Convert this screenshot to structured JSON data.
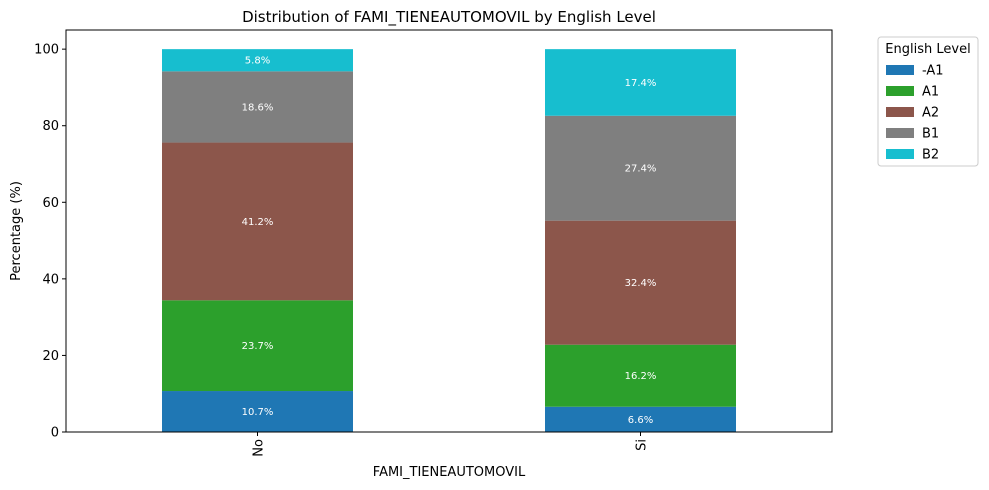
{
  "chart_data": {
    "type": "bar",
    "stacked": true,
    "title": "Distribution of FAMI_TIENEAUTOMOVIL by English Level",
    "xlabel": "FAMI_TIENEAUTOMOVIL",
    "ylabel": "Percentage (%)",
    "ylim": [
      0,
      105
    ],
    "yticks": [
      0,
      20,
      40,
      60,
      80,
      100
    ],
    "categories": [
      "No",
      "Si"
    ],
    "series": [
      {
        "name": "-A1",
        "color": "#1f77b4",
        "values": [
          10.7,
          6.6
        ],
        "labels": [
          "10.7%",
          "6.6%"
        ]
      },
      {
        "name": "A1",
        "color": "#2ca02c",
        "values": [
          23.7,
          16.2
        ],
        "labels": [
          "23.7%",
          "16.2%"
        ]
      },
      {
        "name": "A2",
        "color": "#8c564b",
        "values": [
          41.2,
          32.4
        ],
        "labels": [
          "41.2%",
          "32.4%"
        ]
      },
      {
        "name": "B1",
        "color": "#7f7f7f",
        "values": [
          18.6,
          27.4
        ],
        "labels": [
          "18.6%",
          "27.4%"
        ]
      },
      {
        "name": "B2",
        "color": "#17becf",
        "values": [
          5.8,
          17.4
        ],
        "labels": [
          "5.8%",
          "17.4%"
        ]
      }
    ],
    "legend": {
      "title": "English Level",
      "placement": "outside-top-right"
    },
    "grid": false
  }
}
